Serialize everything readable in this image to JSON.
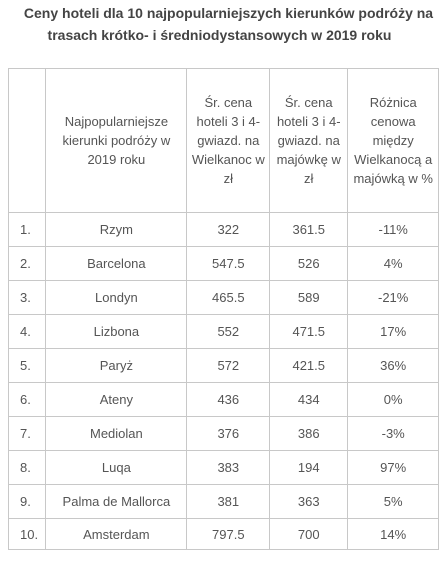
{
  "title": {
    "line1": "Ceny hoteli dla 10 najpopularniejszych kierunków podróży na",
    "line2": "trasach krótko- i średniodystansowych w 2019 roku"
  },
  "table": {
    "headers": [
      "",
      "Najpopularniejsze kierunki podróży w 2019 roku",
      "Śr. cena hoteli 3 i 4-gwiazd. na Wielkanoc w zł",
      "Śr. cena hoteli 3 i 4-gwiazd. na majówkę w zł",
      "Różnica cenowa między Wielkanocą a majówką w %"
    ],
    "rows": [
      {
        "num": "1.",
        "city": "Rzym",
        "easter": "322",
        "may": "361.5",
        "diff": "-11%"
      },
      {
        "num": "2.",
        "city": "Barcelona",
        "easter": "547.5",
        "may": "526",
        "diff": "4%"
      },
      {
        "num": "3.",
        "city": "Londyn",
        "easter": "465.5",
        "may": "589",
        "diff": "-21%"
      },
      {
        "num": "4.",
        "city": "Lizbona",
        "easter": "552",
        "may": "471.5",
        "diff": "17%"
      },
      {
        "num": "5.",
        "city": "Paryż",
        "easter": "572",
        "may": "421.5",
        "diff": "36%"
      },
      {
        "num": "6.",
        "city": "Ateny",
        "easter": "436",
        "may": "434",
        "diff": "0%"
      },
      {
        "num": "7.",
        "city": "Mediolan",
        "easter": "376",
        "may": "386",
        "diff": "-3%"
      },
      {
        "num": "8.",
        "city": "Luqa",
        "easter": "383",
        "may": "194",
        "diff": "97%"
      },
      {
        "num": "9.",
        "city": "Palma de Mallorca",
        "easter": "381",
        "may": "363",
        "diff": "5%"
      },
      {
        "num": "10.",
        "city": "Amsterdam",
        "easter": "797.5",
        "may": "700",
        "diff": "14%"
      }
    ]
  }
}
